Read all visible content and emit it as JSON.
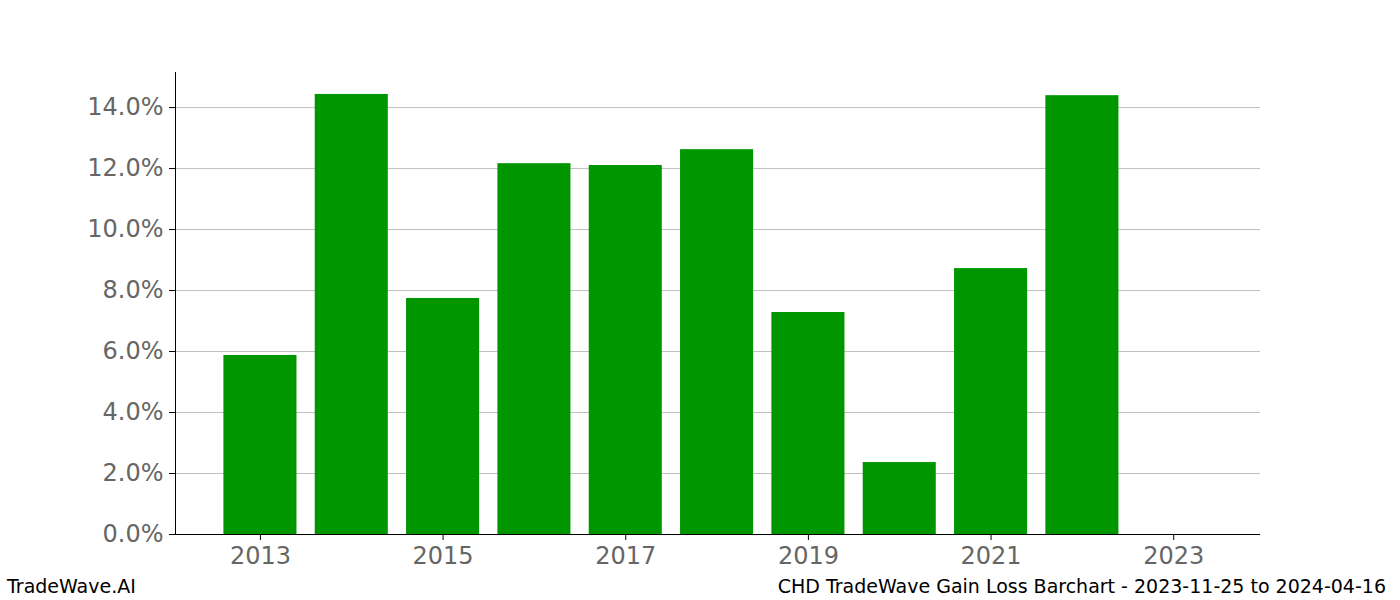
{
  "chart_data": {
    "type": "bar",
    "title": "CHD TradeWave Gain Loss Barchart - 2023-11-25 to 2024-04-16",
    "annotations": [
      "TradeWave.AI"
    ],
    "x": [
      2013,
      2014,
      2015,
      2016,
      2017,
      2018,
      2019,
      2020,
      2021,
      2022
    ],
    "values": [
      5.87,
      14.43,
      7.74,
      12.16,
      12.1,
      12.62,
      7.28,
      2.36,
      8.72,
      14.39
    ],
    "color": "#009600",
    "xlim": [
      2012.07,
      2023.95
    ],
    "xticks": [
      2013,
      2015,
      2017,
      2019,
      2021,
      2023
    ],
    "ylim": [
      0,
      15.15
    ],
    "yticks": [
      {
        "value": 0,
        "label": "0.0%"
      },
      {
        "value": 2,
        "label": "2.0%"
      },
      {
        "value": 4,
        "label": "4.0%"
      },
      {
        "value": 6,
        "label": "6.0%"
      },
      {
        "value": 8,
        "label": "8.0%"
      },
      {
        "value": 10,
        "label": "10.0%"
      },
      {
        "value": 12,
        "label": "12.0%"
      },
      {
        "value": 14,
        "label": "14.0%"
      }
    ],
    "grid": true
  }
}
